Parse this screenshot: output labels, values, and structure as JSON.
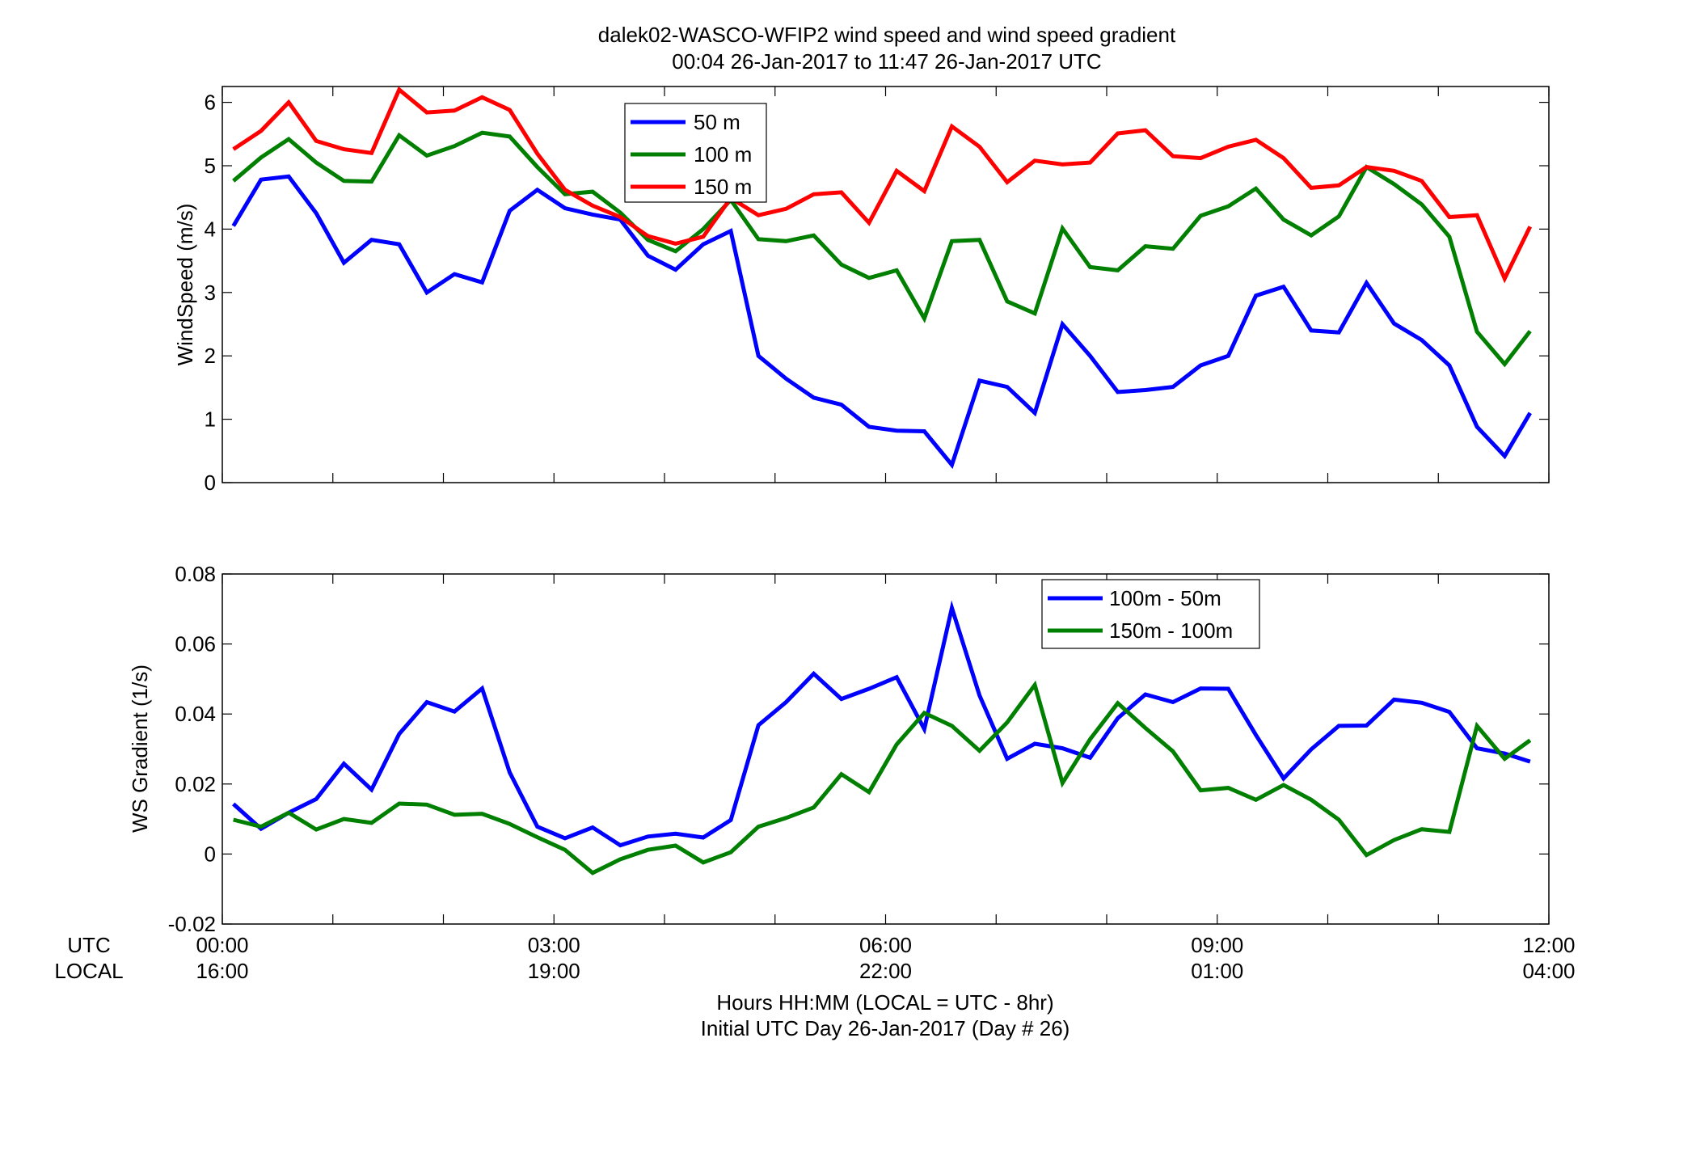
{
  "figure": {
    "title_line1": "dalek02-WASCO-WFIP2  wind speed and wind speed gradient",
    "title_line2": "00:04 26-Jan-2017 to 11:47 26-Jan-2017  UTC",
    "row_label_utc": "UTC",
    "row_label_local": "LOCAL",
    "xlabel_line1": "Hours HH:MM  (LOCAL = UTC - 8hr)",
    "xlabel_line2": "Initial UTC Day 26-Jan-2017 (Day # 26)",
    "x_ticks_utc": [
      "00:00",
      "03:00",
      "06:00",
      "09:00",
      "12:00"
    ],
    "x_ticks_local": [
      "16:00",
      "19:00",
      "22:00",
      "01:00",
      "04:00"
    ]
  },
  "chart_data": [
    {
      "type": "line",
      "ylabel": "WindSpeed (m/s)",
      "xlim": [
        0,
        12
      ],
      "ylim": [
        0,
        6.25
      ],
      "yticks": [
        0,
        1,
        2,
        3,
        4,
        5,
        6
      ],
      "grid": false,
      "legend_position": "top-center",
      "x": [
        0.1,
        0.35,
        0.6,
        0.85,
        1.1,
        1.35,
        1.6,
        1.85,
        2.1,
        2.35,
        2.6,
        2.85,
        3.1,
        3.35,
        3.6,
        3.85,
        4.1,
        4.35,
        4.6,
        4.85,
        5.1,
        5.35,
        5.6,
        5.85,
        6.1,
        6.35,
        6.6,
        6.85,
        7.1,
        7.35,
        7.6,
        7.85,
        8.1,
        8.35,
        8.6,
        8.85,
        9.1,
        9.35,
        9.6,
        9.85,
        10.1,
        10.35,
        10.6,
        10.85,
        11.1,
        11.35,
        11.6,
        11.83
      ],
      "series": [
        {
          "name": "50 m",
          "color": "#0000ff",
          "values": [
            4.05,
            4.78,
            4.83,
            4.25,
            3.47,
            3.83,
            3.76,
            3.0,
            3.29,
            3.16,
            4.29,
            4.62,
            4.33,
            4.23,
            4.15,
            3.58,
            3.36,
            3.76,
            3.97,
            2.0,
            1.64,
            1.34,
            1.23,
            0.88,
            0.82,
            0.81,
            0.28,
            1.61,
            1.51,
            1.1,
            2.5,
            2.0,
            1.43,
            1.46,
            1.51,
            1.85,
            2.0,
            2.95,
            3.09,
            2.4,
            2.37,
            3.15,
            2.51,
            2.25,
            1.85,
            0.88,
            0.42,
            1.1
          ]
        },
        {
          "name": "100 m",
          "color": "#007f00",
          "values": [
            4.76,
            5.13,
            5.42,
            5.05,
            4.76,
            4.75,
            5.48,
            5.16,
            5.31,
            5.52,
            5.46,
            4.98,
            4.55,
            4.59,
            4.26,
            3.83,
            3.65,
            4.0,
            4.46,
            3.84,
            3.81,
            3.9,
            3.44,
            3.23,
            3.35,
            2.59,
            3.81,
            3.83,
            2.86,
            2.67,
            4.01,
            3.4,
            3.35,
            3.73,
            3.69,
            4.21,
            4.36,
            4.64,
            4.15,
            3.9,
            4.2,
            4.98,
            4.71,
            4.39,
            3.88,
            2.38,
            1.87,
            2.39
          ]
        },
        {
          "name": "150 m",
          "color": "#ff0000",
          "values": [
            5.26,
            5.55,
            6.0,
            5.39,
            5.26,
            5.2,
            6.2,
            5.84,
            5.87,
            6.08,
            5.88,
            5.19,
            4.62,
            4.37,
            4.19,
            3.89,
            3.77,
            3.88,
            4.49,
            4.22,
            4.32,
            4.55,
            4.58,
            4.1,
            4.92,
            4.6,
            5.62,
            5.3,
            4.74,
            5.08,
            5.02,
            5.05,
            5.51,
            5.56,
            5.15,
            5.12,
            5.3,
            5.41,
            5.12,
            4.65,
            4.69,
            4.98,
            4.92,
            4.76,
            4.19,
            4.22,
            3.22,
            4.04
          ]
        }
      ]
    },
    {
      "type": "line",
      "ylabel": "WS Gradient (1/s)",
      "xlim": [
        0,
        12
      ],
      "ylim": [
        -0.02,
        0.08
      ],
      "yticks": [
        -0.02,
        0,
        0.02,
        0.04,
        0.06,
        0.08
      ],
      "ytick_labels": [
        "-0.02",
        "0",
        "0.02",
        "0.04",
        "0.06",
        "0.08"
      ],
      "grid": false,
      "legend_position": "top-right",
      "x": [
        0.1,
        0.35,
        0.6,
        0.85,
        1.1,
        1.35,
        1.6,
        1.85,
        2.1,
        2.35,
        2.6,
        2.85,
        3.1,
        3.35,
        3.6,
        3.85,
        4.1,
        4.35,
        4.6,
        4.85,
        5.1,
        5.35,
        5.6,
        5.85,
        6.1,
        6.35,
        6.6,
        6.85,
        7.1,
        7.35,
        7.6,
        7.85,
        8.1,
        8.35,
        8.6,
        8.85,
        9.1,
        9.35,
        9.6,
        9.85,
        10.1,
        10.35,
        10.6,
        10.85,
        11.1,
        11.35,
        11.6,
        11.83
      ],
      "series": [
        {
          "name": "100m - 50m",
          "color": "#0000ff",
          "values": [
            0.0143,
            0.0072,
            0.0118,
            0.0157,
            0.0258,
            0.0184,
            0.0343,
            0.0434,
            0.0407,
            0.0473,
            0.0233,
            0.0078,
            0.0045,
            0.0076,
            0.0025,
            0.005,
            0.0058,
            0.0047,
            0.0097,
            0.0368,
            0.0434,
            0.0515,
            0.0443,
            0.0472,
            0.0505,
            0.0357,
            0.0703,
            0.0453,
            0.0272,
            0.0315,
            0.0302,
            0.0275,
            0.0388,
            0.0456,
            0.0434,
            0.0473,
            0.0472,
            0.034,
            0.0216,
            0.0299,
            0.0366,
            0.0367,
            0.0441,
            0.0432,
            0.0406,
            0.0302,
            0.0287,
            0.0264
          ]
        },
        {
          "name": "150m - 100m",
          "color": "#007f00",
          "values": [
            0.0098,
            0.0078,
            0.0118,
            0.007,
            0.01,
            0.0089,
            0.0144,
            0.0141,
            0.0112,
            0.0115,
            0.0086,
            0.0048,
            0.0012,
            -0.0054,
            -0.0015,
            0.0012,
            0.0024,
            -0.0024,
            0.0005,
            0.0078,
            0.0103,
            0.0133,
            0.0228,
            0.0177,
            0.0313,
            0.0403,
            0.0366,
            0.0295,
            0.0376,
            0.0483,
            0.0203,
            0.0328,
            0.0431,
            0.036,
            0.0293,
            0.0182,
            0.0189,
            0.0155,
            0.0197,
            0.0155,
            0.0098,
            -0.0003,
            0.004,
            0.0071,
            0.0063,
            0.0366,
            0.0272,
            0.0325
          ]
        }
      ]
    }
  ]
}
